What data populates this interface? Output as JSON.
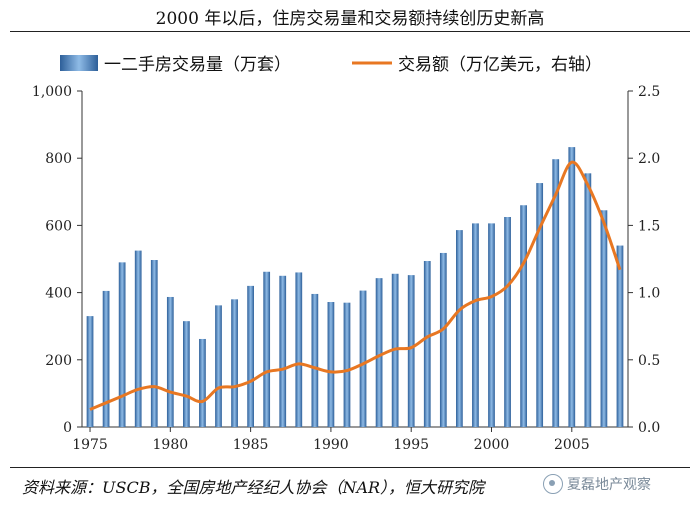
{
  "title": "2000 年以后，住房交易量和交易额持续创历史新高",
  "source": "资料来源：USCB，全国房地产经纪人协会（NAR），恒大研究院",
  "watermark": "夏磊地产观察",
  "watermark_icon": "wechat-icon",
  "colors": {
    "bar": "#4a86c4",
    "bar_dark": "#2d5f99",
    "line": "#e87722",
    "axis": "#333333"
  },
  "chart_data": {
    "type": "bar",
    "title": "2000 年以后，住房交易量和交易额持续创历史新高",
    "x": [
      1975,
      1976,
      1977,
      1978,
      1979,
      1980,
      1981,
      1982,
      1983,
      1984,
      1985,
      1986,
      1987,
      1988,
      1989,
      1990,
      1991,
      1992,
      1993,
      1994,
      1995,
      1996,
      1997,
      1998,
      1999,
      2000,
      2001,
      2002,
      2003,
      2004,
      2005,
      2006,
      2007,
      2008
    ],
    "x_ticks": [
      1975,
      1980,
      1985,
      1990,
      1995,
      2000,
      2005
    ],
    "series": [
      {
        "name": "一二手房交易量（万套）",
        "type": "bar",
        "axis": "left",
        "values": [
          330,
          405,
          490,
          525,
          497,
          387,
          315,
          262,
          362,
          380,
          420,
          462,
          450,
          460,
          396,
          372,
          370,
          406,
          443,
          456,
          452,
          494,
          518,
          586,
          606,
          606,
          625,
          660,
          726,
          797,
          833,
          755,
          645,
          540
        ]
      },
      {
        "name": "交易额（万亿美元，右轴）",
        "type": "line",
        "axis": "right",
        "values": [
          0.13,
          0.18,
          0.23,
          0.28,
          0.3,
          0.26,
          0.23,
          0.19,
          0.29,
          0.3,
          0.34,
          0.41,
          0.43,
          0.47,
          0.44,
          0.41,
          0.42,
          0.47,
          0.53,
          0.58,
          0.59,
          0.67,
          0.73,
          0.87,
          0.94,
          0.97,
          1.05,
          1.22,
          1.48,
          1.73,
          1.97,
          1.8,
          1.52,
          1.17
        ]
      }
    ],
    "ylim_left": [
      0,
      1000
    ],
    "yticks_left": [
      "0",
      "200",
      "400",
      "600",
      "800",
      "1,000"
    ],
    "ylim_right": [
      0,
      2.5
    ],
    "yticks_right": [
      "0.0",
      "0.5",
      "1.0",
      "1.5",
      "2.0",
      "2.5"
    ],
    "legend_position": "top",
    "xlabel": "",
    "ylabel": ""
  }
}
